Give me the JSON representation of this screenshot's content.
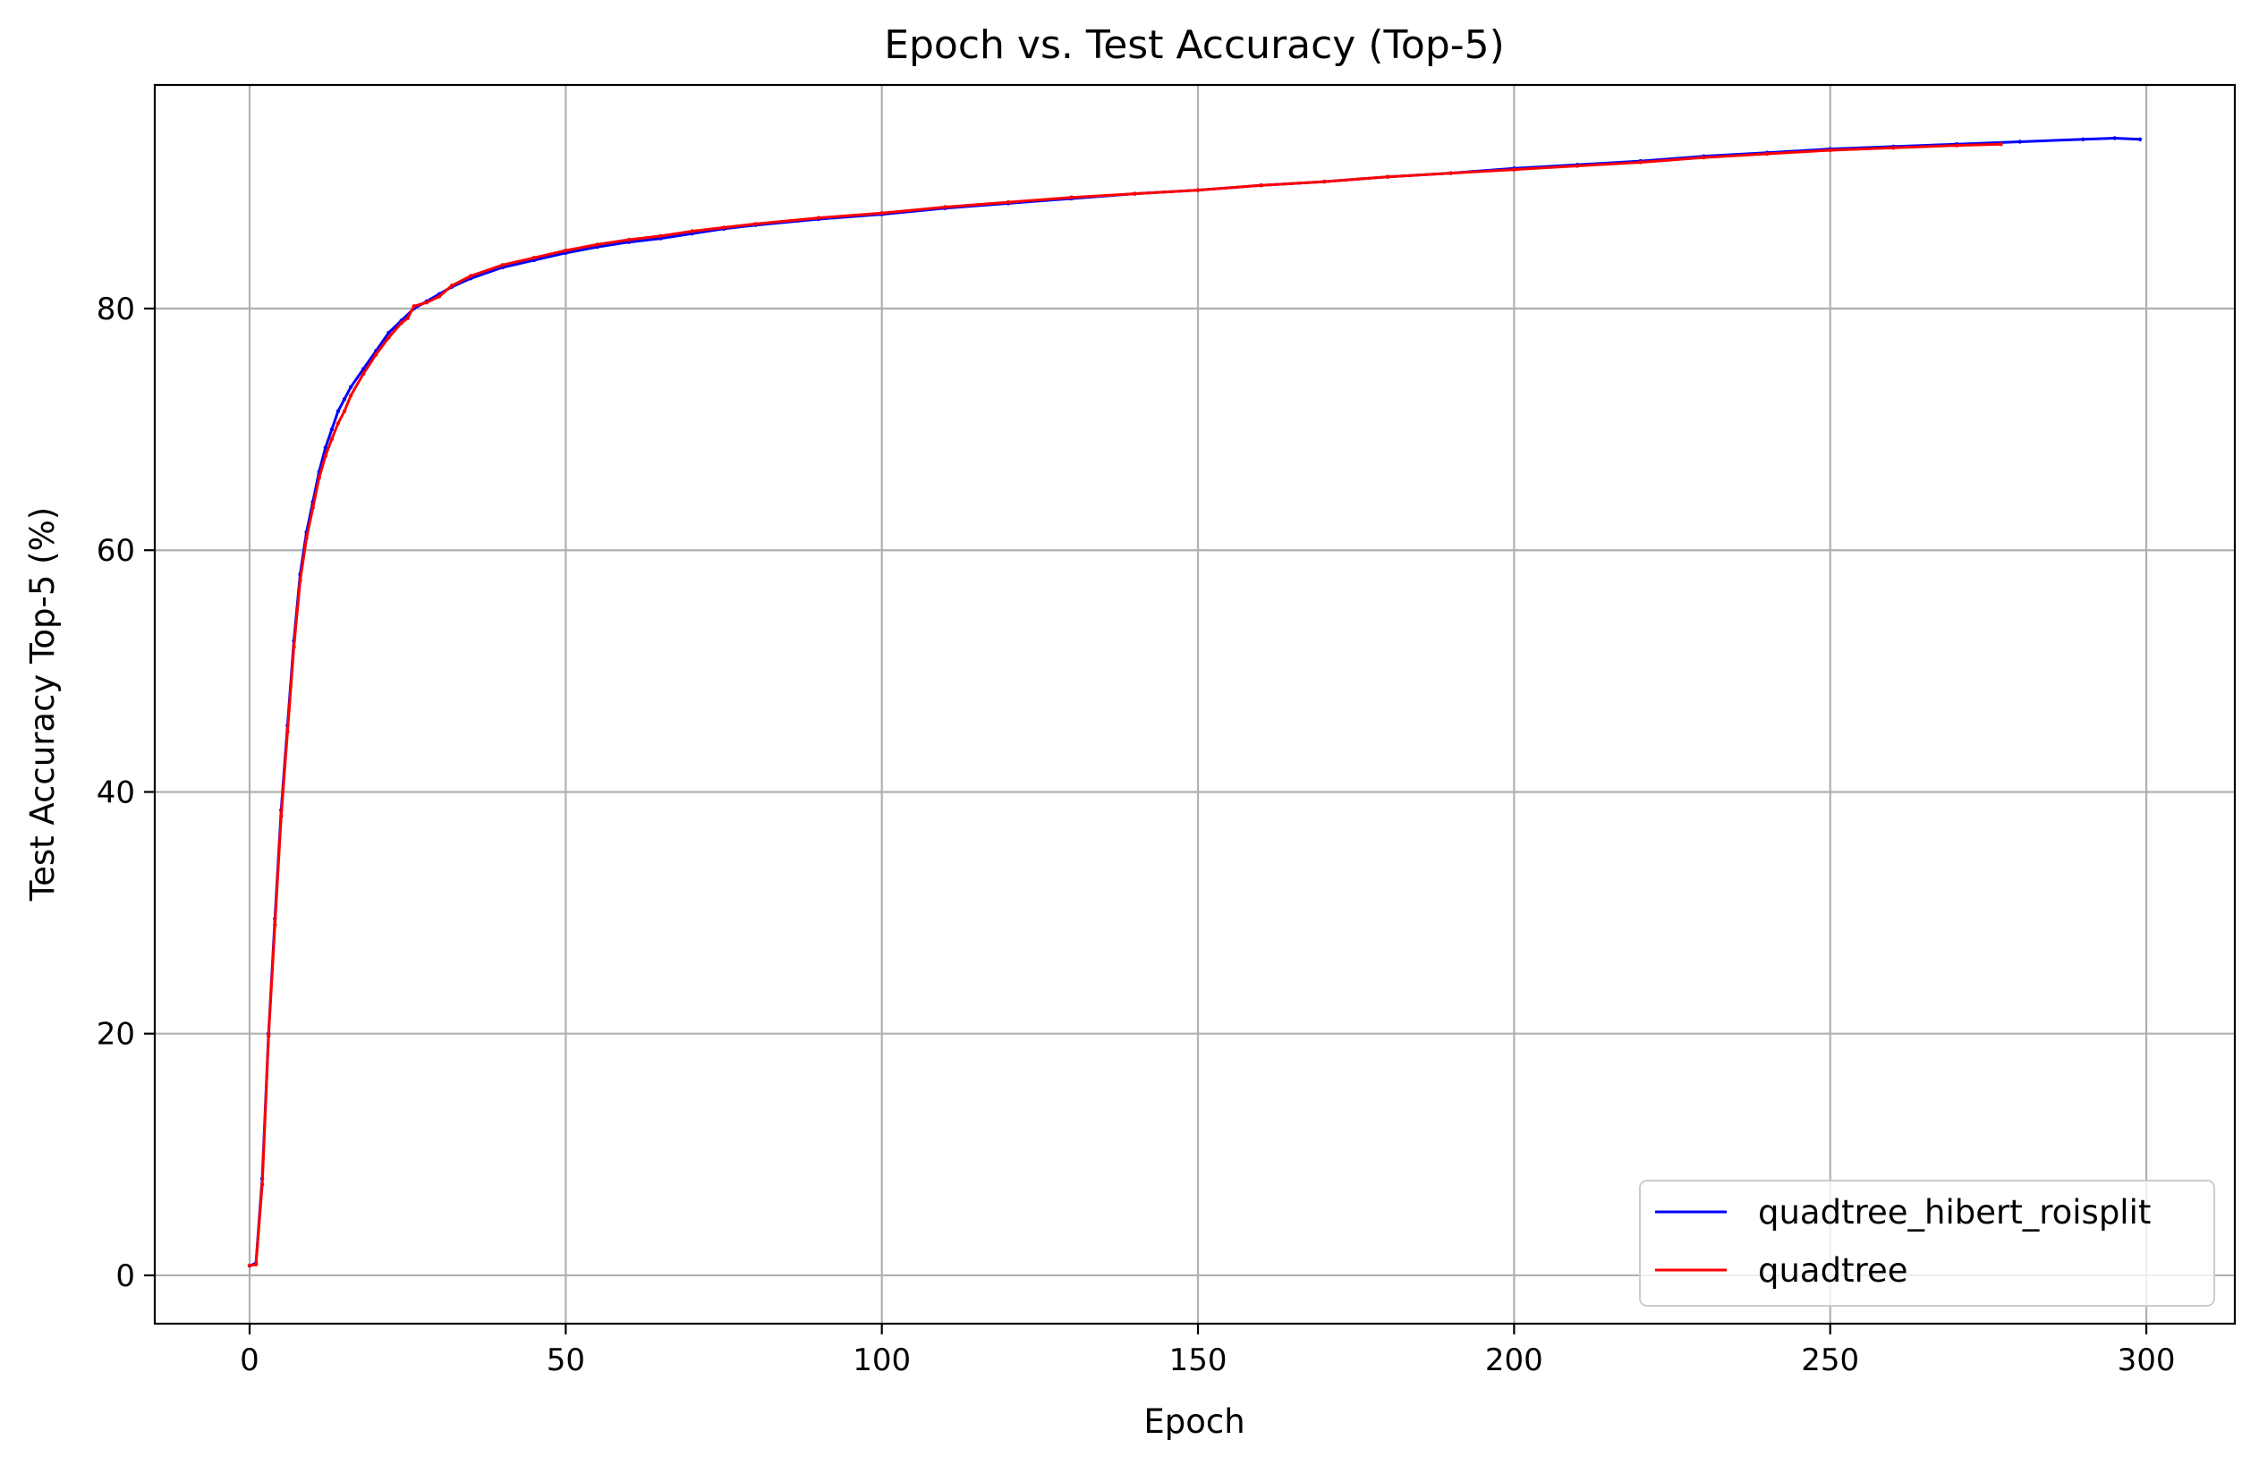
{
  "chart_data": {
    "type": "line",
    "title": "Epoch vs. Test Accuracy (Top-5)",
    "xlabel": "Epoch",
    "ylabel": "Test Accuracy Top-5 (%)",
    "xlim": [
      -15,
      314
    ],
    "ylim": [
      -4,
      98.5
    ],
    "xticks": [
      0,
      50,
      100,
      150,
      200,
      250,
      300
    ],
    "yticks": [
      0,
      20,
      40,
      60,
      80
    ],
    "grid": true,
    "legend_position": "lower-right",
    "series": [
      {
        "name": "quadtree_hibert_roisplit",
        "color": "#0000ff",
        "points": [
          [
            0,
            0.8
          ],
          [
            1,
            1.0
          ],
          [
            2,
            8.0
          ],
          [
            3,
            20.0
          ],
          [
            4,
            29.5
          ],
          [
            5,
            38.5
          ],
          [
            6,
            45.5
          ],
          [
            7,
            52.5
          ],
          [
            8,
            58.0
          ],
          [
            9,
            61.5
          ],
          [
            10,
            64.0
          ],
          [
            11,
            66.5
          ],
          [
            12,
            68.5
          ],
          [
            13,
            70.0
          ],
          [
            14,
            71.5
          ],
          [
            15,
            72.5
          ],
          [
            16,
            73.5
          ],
          [
            18,
            75.0
          ],
          [
            20,
            76.5
          ],
          [
            22,
            78.0
          ],
          [
            24,
            79.0
          ],
          [
            26,
            80.0
          ],
          [
            28,
            80.6
          ],
          [
            30,
            81.2
          ],
          [
            32,
            81.8
          ],
          [
            35,
            82.5
          ],
          [
            40,
            83.4
          ],
          [
            45,
            84.0
          ],
          [
            50,
            84.6
          ],
          [
            55,
            85.1
          ],
          [
            60,
            85.5
          ],
          [
            65,
            85.8
          ],
          [
            70,
            86.2
          ],
          [
            75,
            86.6
          ],
          [
            80,
            86.9
          ],
          [
            90,
            87.4
          ],
          [
            100,
            87.8
          ],
          [
            110,
            88.3
          ],
          [
            120,
            88.7
          ],
          [
            130,
            89.1
          ],
          [
            140,
            89.5
          ],
          [
            150,
            89.8
          ],
          [
            160,
            90.2
          ],
          [
            170,
            90.5
          ],
          [
            180,
            90.9
          ],
          [
            190,
            91.2
          ],
          [
            200,
            91.6
          ],
          [
            210,
            91.9
          ],
          [
            220,
            92.2
          ],
          [
            230,
            92.6
          ],
          [
            240,
            92.9
          ],
          [
            250,
            93.2
          ],
          [
            260,
            93.4
          ],
          [
            270,
            93.6
          ],
          [
            280,
            93.8
          ],
          [
            290,
            94.0
          ],
          [
            295,
            94.1
          ],
          [
            299,
            94.0
          ]
        ]
      },
      {
        "name": "quadtree",
        "color": "#ff0000",
        "points": [
          [
            0,
            0.8
          ],
          [
            1,
            0.9
          ],
          [
            2,
            7.5
          ],
          [
            3,
            19.8
          ],
          [
            4,
            29.0
          ],
          [
            5,
            38.0
          ],
          [
            6,
            45.0
          ],
          [
            7,
            52.0
          ],
          [
            8,
            57.5
          ],
          [
            9,
            61.0
          ],
          [
            10,
            63.5
          ],
          [
            11,
            66.0
          ],
          [
            12,
            67.8
          ],
          [
            13,
            69.2
          ],
          [
            14,
            70.5
          ],
          [
            15,
            71.5
          ],
          [
            16,
            72.8
          ],
          [
            18,
            74.6
          ],
          [
            20,
            76.2
          ],
          [
            22,
            77.6
          ],
          [
            24,
            78.8
          ],
          [
            25,
            79.2
          ],
          [
            26,
            80.2
          ],
          [
            28,
            80.5
          ],
          [
            30,
            81.0
          ],
          [
            32,
            81.9
          ],
          [
            35,
            82.7
          ],
          [
            40,
            83.6
          ],
          [
            45,
            84.2
          ],
          [
            50,
            84.8
          ],
          [
            55,
            85.3
          ],
          [
            60,
            85.7
          ],
          [
            65,
            86.0
          ],
          [
            70,
            86.4
          ],
          [
            75,
            86.7
          ],
          [
            80,
            87.0
          ],
          [
            90,
            87.5
          ],
          [
            100,
            87.9
          ],
          [
            110,
            88.4
          ],
          [
            120,
            88.8
          ],
          [
            130,
            89.2
          ],
          [
            140,
            89.5
          ],
          [
            150,
            89.8
          ],
          [
            160,
            90.2
          ],
          [
            170,
            90.5
          ],
          [
            180,
            90.9
          ],
          [
            190,
            91.2
          ],
          [
            200,
            91.5
          ],
          [
            210,
            91.8
          ],
          [
            220,
            92.1
          ],
          [
            230,
            92.5
          ],
          [
            240,
            92.8
          ],
          [
            250,
            93.1
          ],
          [
            260,
            93.3
          ],
          [
            270,
            93.5
          ],
          [
            277,
            93.6
          ]
        ]
      }
    ]
  }
}
